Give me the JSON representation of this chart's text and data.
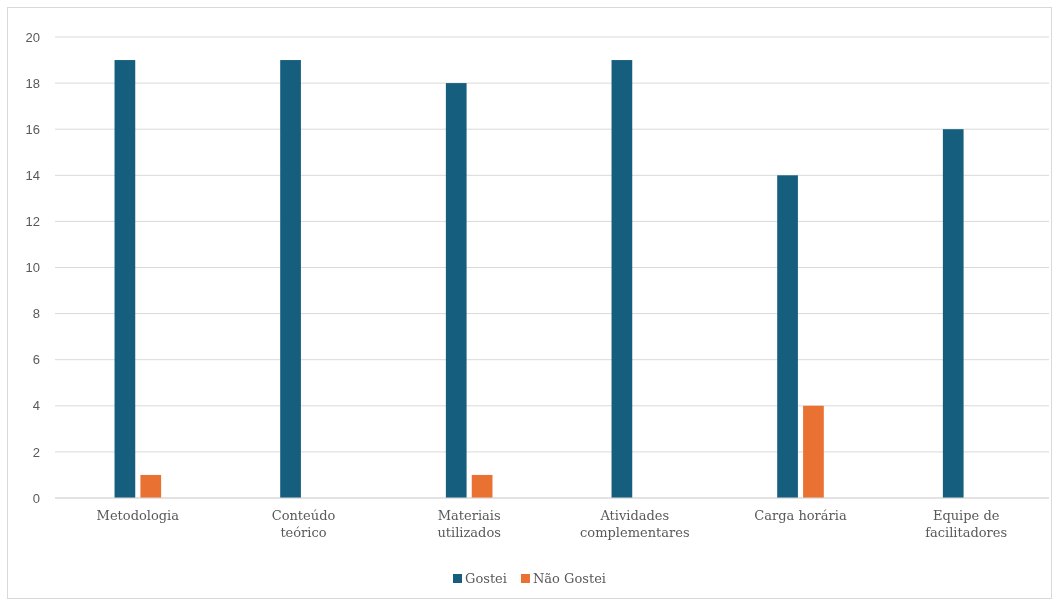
{
  "chart_data": {
    "type": "bar",
    "categories": [
      "Metodologia",
      "Conteúdo teórico",
      "Materiais utilizados",
      "Atividades complementares",
      "Carga horária",
      "Equipe de facilitadores"
    ],
    "series": [
      {
        "name": "Gostei",
        "color": "#155e7d",
        "values": [
          19,
          19,
          18,
          19,
          14,
          16
        ]
      },
      {
        "name": "Não Gostei",
        "color": "#e97132",
        "values": [
          1,
          0,
          1,
          0,
          4,
          0
        ]
      }
    ],
    "ylim": [
      0,
      20
    ],
    "yticks": [
      0,
      2,
      4,
      6,
      8,
      10,
      12,
      14,
      16,
      18,
      20
    ],
    "grid": "y",
    "legend": "bottom"
  }
}
